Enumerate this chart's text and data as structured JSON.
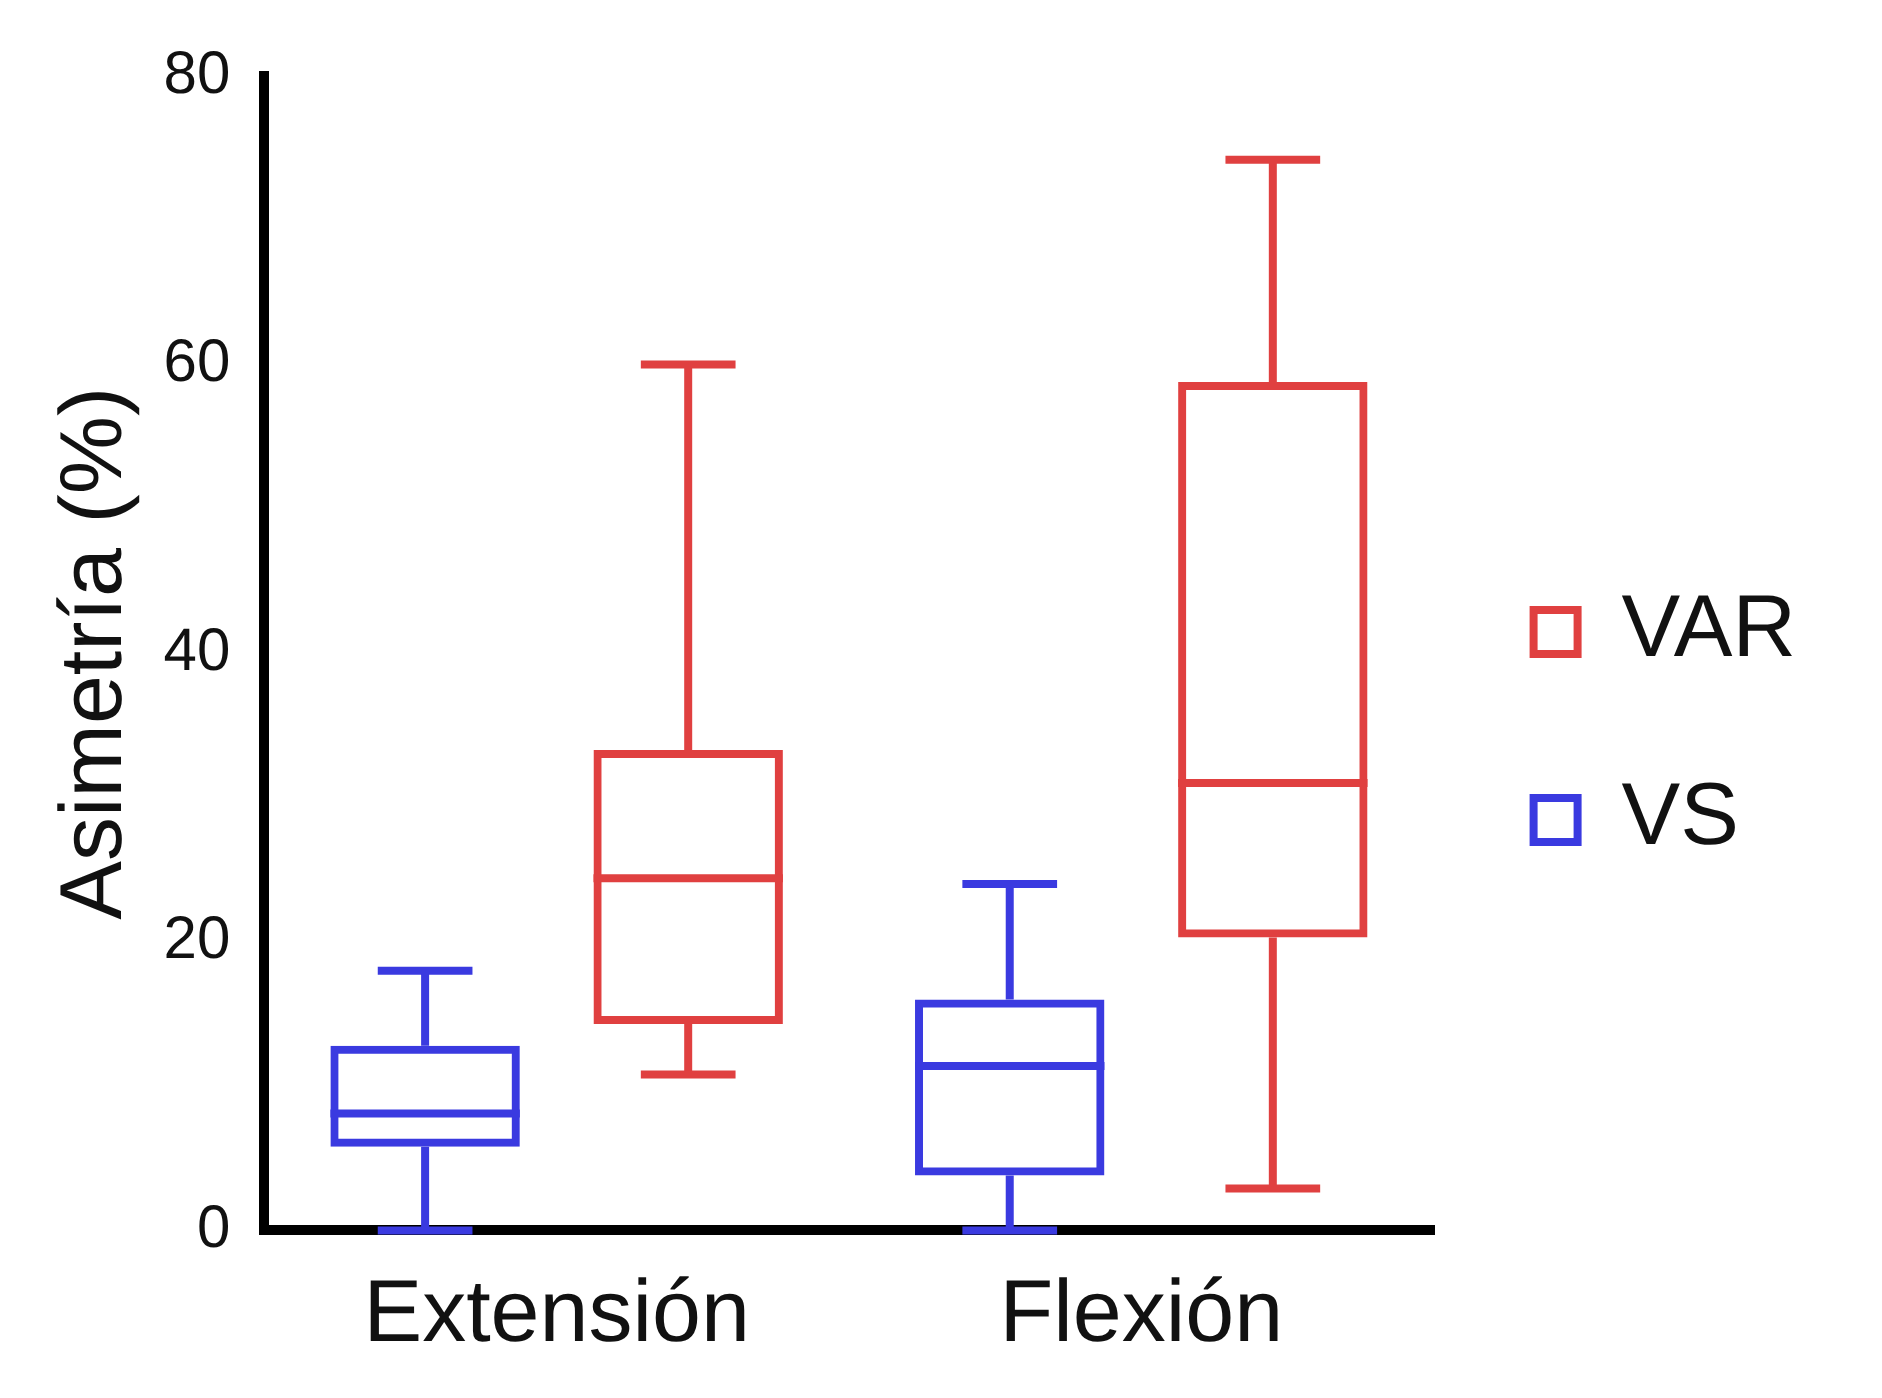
{
  "chart_data": {
    "type": "box",
    "ylabel": "Asimetría (%)",
    "categories": [
      "Extensión",
      "Flexión"
    ],
    "ylim": [
      0,
      80
    ],
    "yticks": [
      0,
      20,
      40,
      60,
      80
    ],
    "grid": false,
    "legend": "right",
    "series": [
      {
        "name": "VS",
        "color": "#3a3ae0",
        "boxes": [
          {
            "low": 0,
            "q1": 5.8,
            "median": 8.1,
            "q3": 12.8,
            "high": 18
          },
          {
            "low": 0,
            "q1": 3.8,
            "median": 11.4,
            "q3": 16,
            "high": 24
          }
        ]
      },
      {
        "name": "VAR",
        "color": "#e04040",
        "boxes": [
          {
            "low": 10.8,
            "q1": 14.3,
            "median": 24.4,
            "q3": 33.3,
            "high": 60
          },
          {
            "low": 2.9,
            "q1": 20.3,
            "median": 31,
            "q3": 58.8,
            "high": 74.2
          }
        ]
      }
    ]
  }
}
